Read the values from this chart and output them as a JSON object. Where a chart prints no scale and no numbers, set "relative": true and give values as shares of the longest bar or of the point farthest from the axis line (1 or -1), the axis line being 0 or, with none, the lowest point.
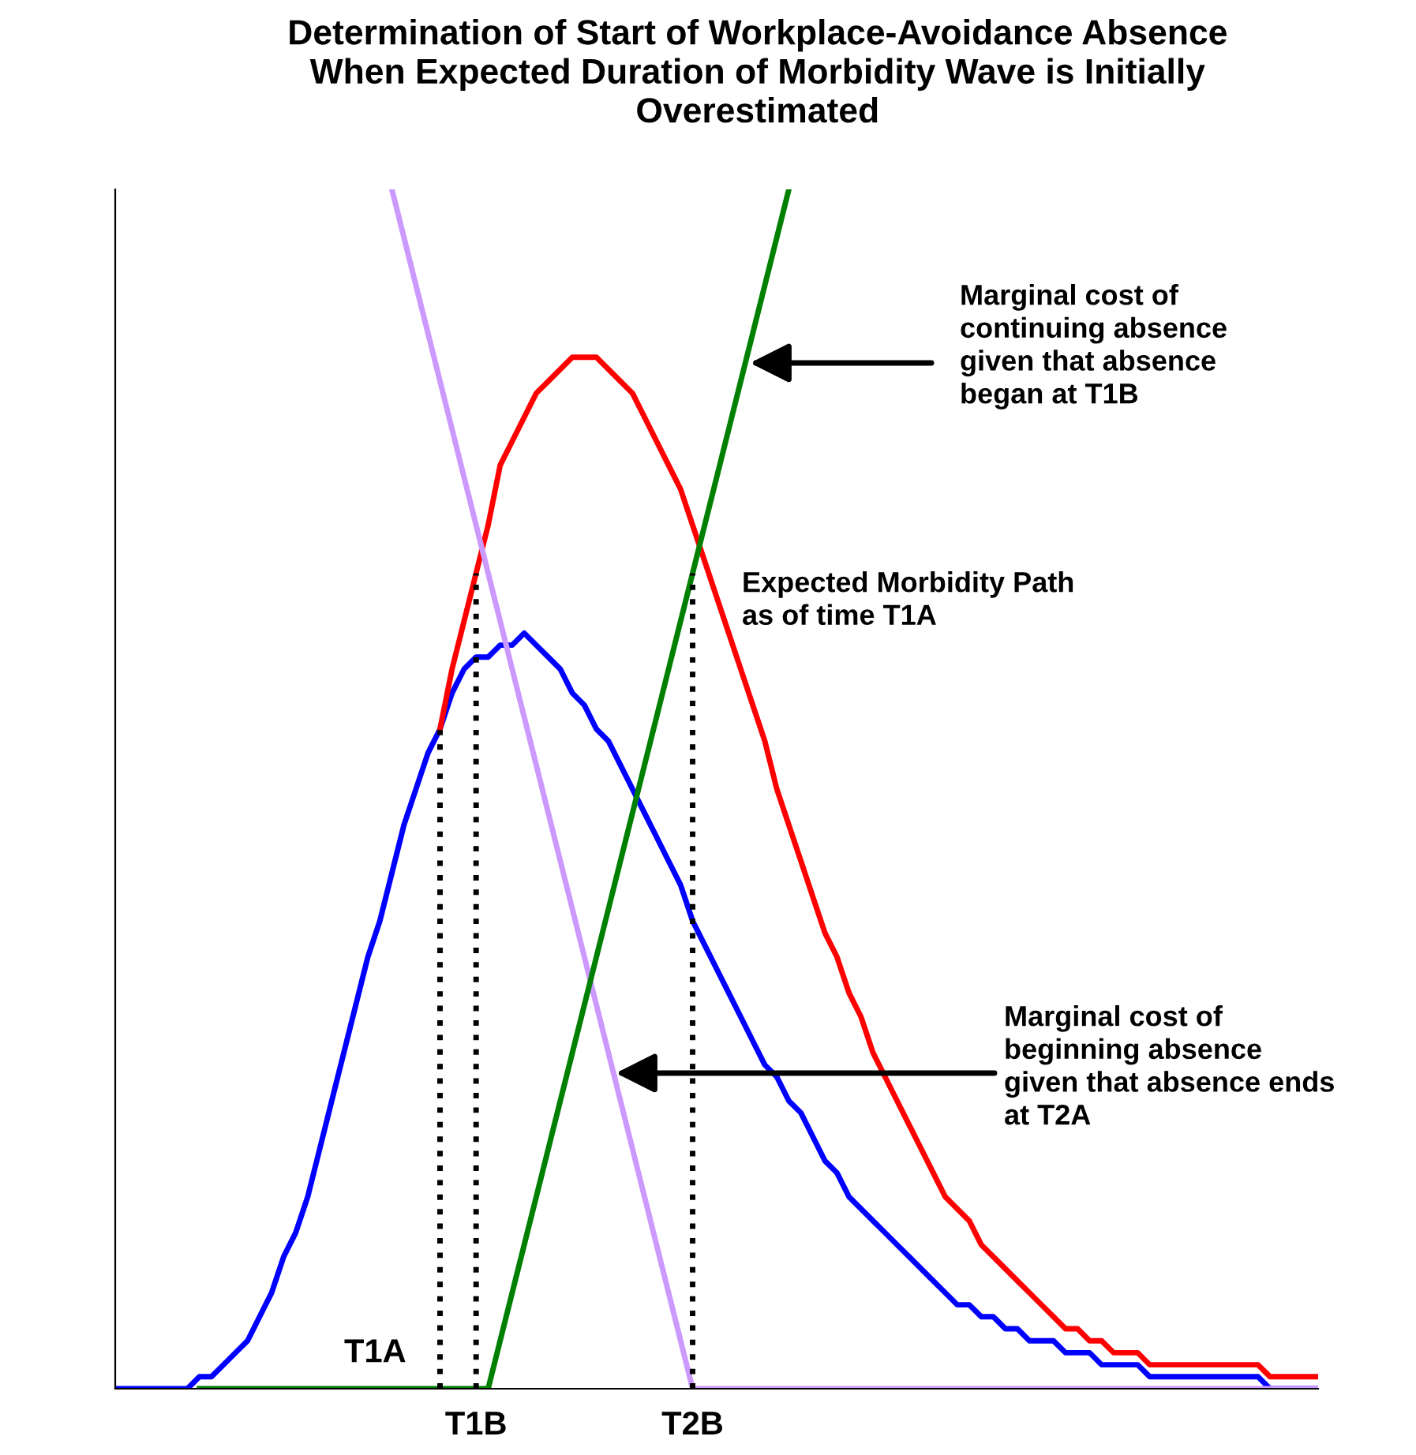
{
  "chart_data": {
    "type": "line",
    "title": "Determination of Start of Workplace-Avoidance Absence\nWhen Expected Duration of Morbidity Wave is Initially\nOverestimated",
    "relative": true,
    "categories": [
      null,
      null,
      null,
      null,
      null,
      null,
      null,
      null,
      null,
      null,
      null,
      null,
      null,
      null,
      null,
      null,
      null,
      null,
      null,
      null,
      null,
      null,
      null,
      null,
      null,
      null,
      null,
      null,
      null,
      null,
      "T1B",
      null,
      null,
      null,
      null,
      null,
      null,
      null,
      null,
      null,
      null,
      null,
      null,
      null,
      null,
      null,
      null,
      null,
      "T2B",
      null,
      null,
      null,
      null,
      null,
      null,
      null,
      null,
      null,
      null,
      null,
      null,
      null,
      null,
      null,
      null,
      null,
      null,
      null,
      null,
      null,
      null,
      null,
      null,
      null,
      null,
      null,
      null,
      null,
      null,
      null,
      null,
      null,
      null,
      null,
      null,
      null,
      null,
      null,
      null,
      null,
      null,
      null,
      null,
      null,
      null,
      null,
      null,
      null,
      null,
      null,
      null
    ],
    "series": [
      {
        "color": "#0000ff",
        "values": [
          0,
          0,
          0,
          0,
          0,
          0,
          0,
          0.01,
          0.01,
          0.02,
          0.03,
          0.04,
          0.06,
          0.08,
          0.11,
          0.13,
          0.16,
          0.2,
          0.24,
          0.28,
          0.32,
          0.36,
          0.39,
          0.43,
          0.47,
          0.5,
          0.53,
          0.55,
          0.58,
          0.6,
          0.61,
          0.61,
          0.62,
          0.62,
          0.63,
          0.62,
          0.61,
          0.6,
          0.58,
          0.57,
          0.55,
          0.54,
          0.52,
          0.5,
          0.48,
          0.46,
          0.44,
          0.42,
          0.39,
          0.37,
          0.35,
          0.33,
          0.31,
          0.29,
          0.27,
          0.26,
          0.24,
          0.23,
          0.21,
          0.19,
          0.18,
          0.16,
          0.15,
          0.14,
          0.13,
          0.12,
          0.11,
          0.1,
          0.09,
          0.08,
          0.07,
          0.07,
          0.06,
          0.06,
          0.05,
          0.05,
          0.04,
          0.04,
          0.04,
          0.03,
          0.03,
          0.03,
          0.02,
          0.02,
          0.02,
          0.02,
          0.01,
          0.01,
          0.01,
          0.01,
          0.01,
          0.01,
          0.01,
          0.01,
          0.01,
          0.01,
          0,
          0,
          0,
          0,
          0
        ]
      },
      {
        "color": "#ff0000",
        "values": [
          null,
          null,
          null,
          null,
          null,
          null,
          null,
          null,
          null,
          null,
          null,
          null,
          null,
          null,
          null,
          null,
          null,
          null,
          null,
          null,
          null,
          null,
          null,
          null,
          null,
          null,
          null,
          0.55,
          0.6,
          0.64,
          0.68,
          0.72,
          0.77,
          0.79,
          0.81,
          0.83,
          0.84,
          0.85,
          0.86,
          0.86,
          0.86,
          0.85,
          0.84,
          0.83,
          0.81,
          0.79,
          0.77,
          0.75,
          0.72,
          0.69,
          0.66,
          0.63,
          0.6,
          0.57,
          0.54,
          0.5,
          0.47,
          0.44,
          0.41,
          0.38,
          0.36,
          0.33,
          0.31,
          0.28,
          0.26,
          0.24,
          0.22,
          0.2,
          0.18,
          0.16,
          0.15,
          0.14,
          0.12,
          0.11,
          0.1,
          0.09,
          0.08,
          0.07,
          0.06,
          0.05,
          0.05,
          0.04,
          0.04,
          0.03,
          0.03,
          0.03,
          0.02,
          0.02,
          0.02,
          0.02,
          0.02,
          0.02,
          0.02,
          0.02,
          0.02,
          0.02,
          0.01,
          0.01,
          0.01,
          0.01,
          0.01
        ]
      },
      {
        "color": "#cc99ff",
        "values": [
          null,
          null,
          null,
          null,
          null,
          null,
          null,
          null,
          null,
          null,
          null,
          null,
          null,
          null,
          null,
          null,
          null,
          null,
          null,
          null,
          null,
          null,
          null,
          1,
          0.96,
          0.92,
          0.88,
          0.84,
          0.8,
          0.76,
          0.72,
          0.68,
          0.64,
          0.6,
          0.56,
          0.52,
          0.48,
          0.44,
          0.4,
          0.36,
          0.32,
          0.28,
          0.24,
          0.2,
          0.16,
          0.12,
          0.08,
          0.04,
          0,
          0,
          0,
          0,
          0,
          0,
          0,
          0,
          0,
          0,
          0,
          0,
          0,
          0,
          0,
          0,
          0,
          0,
          0,
          0,
          0,
          0,
          0,
          0,
          0,
          0,
          0,
          0,
          0,
          0,
          0,
          0,
          0,
          0,
          0,
          0,
          0,
          0,
          0,
          0,
          0,
          0,
          0,
          0,
          0,
          0,
          0,
          0,
          0,
          0,
          0,
          0,
          0
        ]
      },
      {
        "color": "#008000",
        "values": [
          null,
          null,
          null,
          null,
          null,
          null,
          null,
          0,
          0,
          0,
          0,
          0,
          0,
          0,
          0,
          0,
          0,
          0,
          0,
          0,
          0,
          0,
          0,
          0,
          0,
          0,
          0,
          0,
          0,
          0,
          0,
          0,
          0.04,
          0.08,
          0.12,
          0.16,
          0.2,
          0.24,
          0.28,
          0.32,
          0.36,
          0.4,
          0.44,
          0.48,
          0.52,
          0.56,
          0.6,
          0.64,
          0.68,
          0.72,
          0.76,
          0.8,
          0.84,
          0.88,
          0.92,
          0.96,
          1,
          null,
          null,
          null,
          null,
          null,
          null,
          null,
          null,
          null,
          null,
          null,
          null,
          null,
          null,
          null,
          null,
          null,
          null,
          null,
          null,
          null,
          null,
          null,
          null,
          null,
          null,
          null,
          null,
          null,
          null,
          null,
          null,
          null,
          null,
          null,
          null,
          null,
          null,
          null,
          null,
          null,
          null,
          null,
          null
        ]
      }
    ],
    "ref_lines": [
      {
        "axis": "x",
        "value": "T1B",
        "color": "#000000",
        "line_style": "dotted"
      },
      {
        "axis": "x",
        "value": "T2B",
        "color": "#000000",
        "line_style": "dotted"
      }
    ],
    "annotations": [
      "Marginal cost of\ncontinuing absence\ngiven that absence\nbegan at T1B",
      "Marginal cost of\nbeginning absence\ngiven that absence ends\nat T2A",
      "Expected Morbidity Path\nas of time T1A",
      "T1A"
    ]
  }
}
